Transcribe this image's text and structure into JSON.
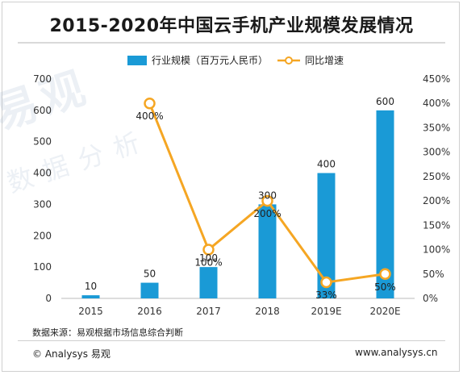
{
  "title": "2015-2020年中国云手机产业规模发展情况",
  "watermark": {
    "main": "易观",
    "sub": "数据分析"
  },
  "legend": {
    "bar": "行业规模（百万元人民币）",
    "line": "同比增速"
  },
  "colors": {
    "bar": "#1a9ad6",
    "line": "#f5a623",
    "marker_fill": "#ffffff"
  },
  "chart_data": {
    "type": "bar",
    "categories": [
      "2015",
      "2016",
      "2017",
      "2018",
      "2019E",
      "2020E"
    ],
    "series": [
      {
        "name": "行业规模（百万元人民币）",
        "type": "bar",
        "axis": "left",
        "values": [
          10,
          50,
          100,
          300,
          400,
          600
        ],
        "labels": [
          "10",
          "50",
          "100",
          "300",
          "400",
          "600"
        ]
      },
      {
        "name": "同比增速",
        "type": "line",
        "axis": "right",
        "values": [
          null,
          400,
          100,
          200,
          33,
          50
        ],
        "labels": [
          "",
          "400%",
          "100%",
          "200%",
          "33%",
          "50%"
        ]
      }
    ],
    "y_left": {
      "min": 0,
      "max": 700,
      "ticks": [
        0,
        100,
        200,
        300,
        400,
        500,
        600,
        700
      ],
      "tick_labels": [
        "0",
        "100",
        "200",
        "300",
        "400",
        "500",
        "600",
        "700"
      ]
    },
    "y_right": {
      "min": 0,
      "max": 450,
      "ticks": [
        0,
        50,
        100,
        150,
        200,
        250,
        300,
        350,
        400,
        450
      ],
      "tick_labels": [
        "0%",
        "50%",
        "100%",
        "150%",
        "200%",
        "250%",
        "300%",
        "350%",
        "400%",
        "450%"
      ]
    },
    "grid": false,
    "legend_position": "top"
  },
  "source": "数据来源：易观根据市场信息综合判断",
  "brand": "© Analysys 易观",
  "site": "www.analysys.cn"
}
